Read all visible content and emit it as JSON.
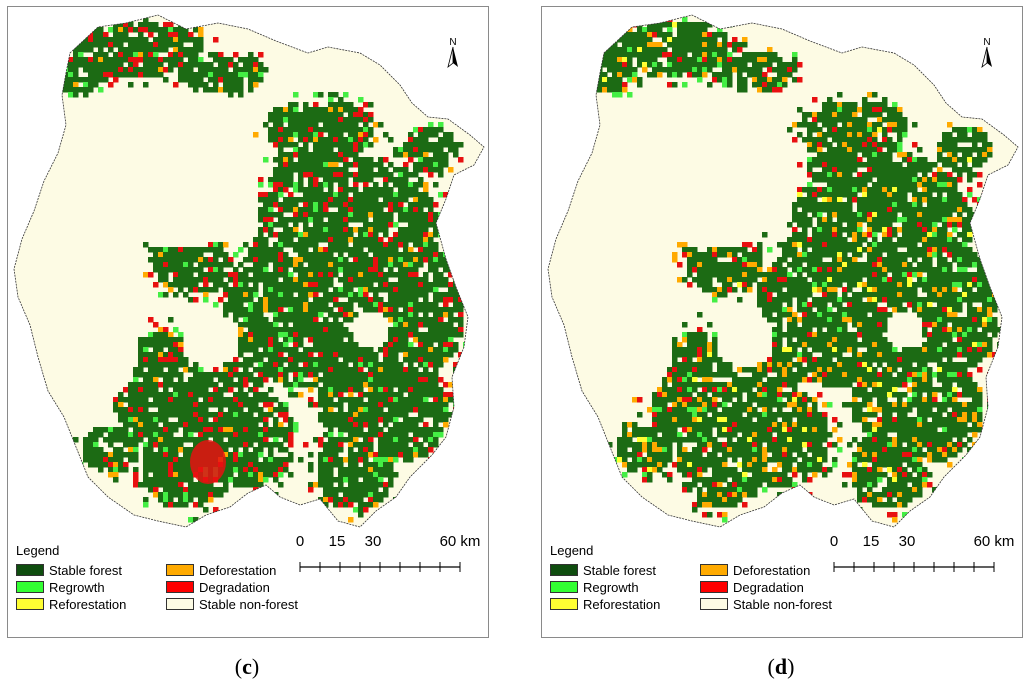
{
  "figure": {
    "panels": [
      {
        "id": "c",
        "caption_open": "(",
        "caption_letter": "c",
        "caption_close": ")"
      },
      {
        "id": "d",
        "caption_open": "(",
        "caption_letter": "d",
        "caption_close": ")"
      }
    ],
    "north_letter": "N",
    "legend": {
      "title": "Legend",
      "items": [
        {
          "label": "Stable forest",
          "color": "#0f4d0f"
        },
        {
          "label": "Deforestation",
          "color": "#ffaa00"
        },
        {
          "label": "Regrowth",
          "color": "#33ff33"
        },
        {
          "label": "Degradation",
          "color": "#ff0000"
        },
        {
          "label": "Reforestation",
          "color": "#ffff33"
        },
        {
          "label": "Stable non-forest",
          "color": "#fdfbe4"
        }
      ]
    },
    "scalebar": {
      "labels": [
        "0",
        "15",
        "30",
        "60 km"
      ]
    },
    "colors": {
      "non_forest": "#fdfbe4",
      "stable_forest": "#1c6b14",
      "deforestation": "#ffaa00",
      "degradation": "#e81010",
      "regrowth": "#44ee44",
      "reforestation": "#ffff33",
      "outline": "#333333"
    }
  }
}
